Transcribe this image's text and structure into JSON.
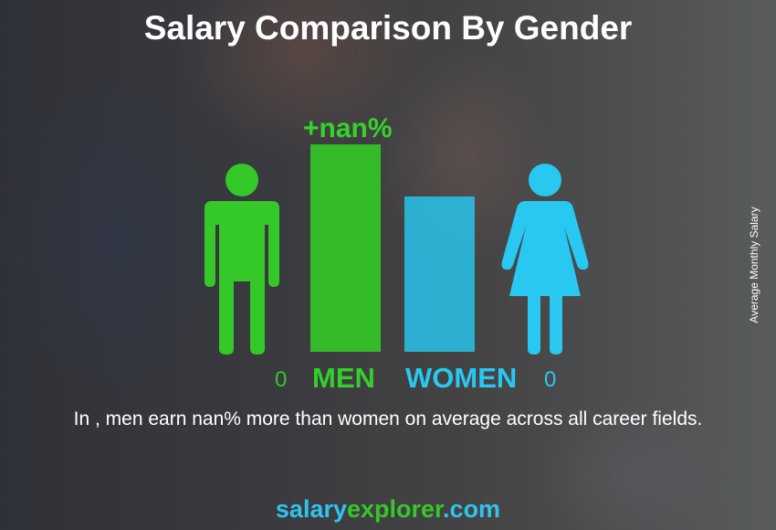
{
  "title": "Salary Comparison By Gender",
  "chart_data": {
    "type": "bar",
    "categories": [
      "MEN",
      "WOMEN"
    ],
    "values": [
      0,
      0
    ],
    "value_labels": [
      "0",
      "0"
    ],
    "difference_label": "+nan%",
    "ylabel": "Average Monthly Salary",
    "colors": {
      "men": "#34c828",
      "women": "#28c3eb"
    }
  },
  "caption": "In , men earn nan% more than women on average across all career fields.",
  "brand": {
    "part1": "salary",
    "part2": "explorer",
    "part3": ".com"
  },
  "icons": [
    "male-icon",
    "female-icon"
  ]
}
